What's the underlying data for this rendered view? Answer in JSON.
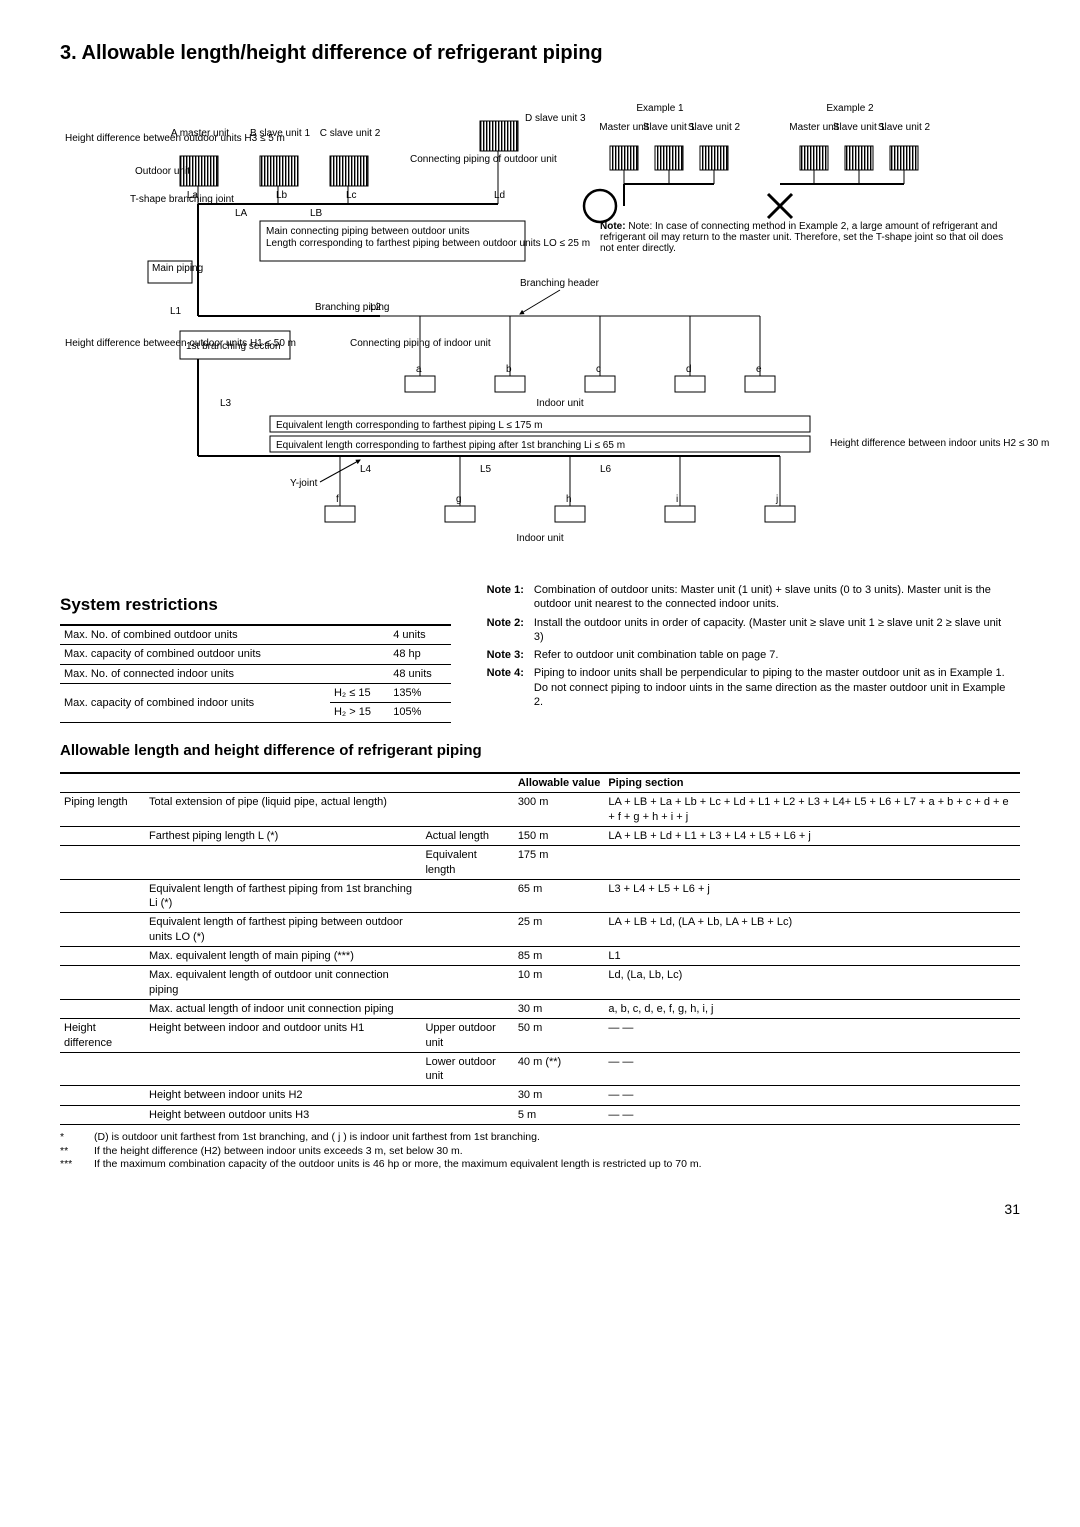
{
  "page_title": "3.  Allowable length/height difference of refrigerant piping",
  "diagram": {
    "labels": {
      "h_diff_outdoor": "Height difference between outdoor units H3 ≤ 5 m",
      "a_master": "A master unit",
      "b_slave": "B slave unit 1",
      "c_slave": "C slave unit 2",
      "d_slave": "D slave unit 3",
      "outdoor_unit": "Outdoor unit",
      "t_joint": "T-shape branching joint",
      "la": "La",
      "lb": "Lb",
      "lc": "Lc",
      "ld": "Ld",
      "LA": "LA",
      "LB": "LB",
      "connecting_piping": "Connecting piping of outdoor unit",
      "main_connecting": "Main connecting piping between outdoor units",
      "length_lo": "Length corresponding to farthest piping between outdoor units LO ≤ 25 m",
      "main_piping": "Main piping",
      "l1": "L1",
      "l2": "L2",
      "l3": "L3",
      "l4": "L4",
      "l5": "L5",
      "l6": "L6",
      "branching_piping": "Branching piping",
      "first_branch": "1st branching section",
      "h_diff_out_in": "Height difference betweeen outdoor units H1 ≤ 50 m",
      "connecting_indoor": "Connecting piping of indoor unit",
      "branching_header": "Branching header",
      "a_j": [
        "a",
        "b",
        "c",
        "d",
        "e",
        "f",
        "g",
        "h",
        "i",
        "j"
      ],
      "indoor_unit": "Indoor unit",
      "eq_len_L": "Equivalent length corresponding to farthest piping L ≤ 175 m",
      "eq_len_Li": "Equivalent length corresponding to farthest piping after 1st branching Li ≤ 65 m",
      "y_joint": "Y-joint",
      "h_diff_indoor": "Height difference between indoor units H2 ≤ 30 m",
      "example1": "Example 1",
      "example2": "Example 2",
      "master_unit": "Master unit",
      "slave1": "Slave unit 1",
      "slave2": "Slave unit 2",
      "note_ex2": "Note: In case of connecting method in Example 2, a large amount of refrigerant and refrigerant oil may return to the master unit. Therefore, set the T-shape joint so that oil does not enter directly."
    }
  },
  "system_restrictions": {
    "title": "System restrictions",
    "rows": [
      [
        "Max. No. of combined outdoor units",
        "",
        "4 units"
      ],
      [
        "Max. capacity of combined outdoor units",
        "",
        "48 hp"
      ],
      [
        "Max. No. of connected indoor units",
        "",
        "48 units"
      ],
      [
        "Max. capacity of combined indoor units",
        "H₂ ≤ 15",
        "135%"
      ],
      [
        "",
        "H₂ > 15",
        "105%"
      ]
    ]
  },
  "notes": [
    [
      "Note 1:",
      "Combination of outdoor units: Master unit (1 unit) + slave units (0 to 3 units). Master unit is the outdoor unit nearest to the connected indoor units."
    ],
    [
      "Note 2:",
      "Install the outdoor units in order of capacity. (Master unit ≥ slave unit 1 ≥ slave unit 2 ≥ slave unit 3)"
    ],
    [
      "Note 3:",
      "Refer to outdoor unit combination table on page 7."
    ],
    [
      "Note 4:",
      "Piping to indoor units shall be perpendicular to piping to the master outdoor unit as in Example 1. Do not connect piping to indoor uints in the same direction as the master outdoor unit in Example 2."
    ]
  ],
  "allowable": {
    "title": "Allowable length and height difference of refrigerant piping",
    "headers": [
      "",
      "",
      "",
      "Allowable value",
      "Piping section"
    ],
    "rows": [
      [
        "Piping length",
        "Total extension of pipe (liquid pipe, actual length)",
        "",
        "300 m",
        "LA + LB + La + Lb + Lc + Ld + L1 + L2 + L3 + L4+ L5 + L6 + L7 + a + b + c + d + e + f + g + h + i + j"
      ],
      [
        "",
        "Farthest piping length L (*)",
        "Actual length",
        "150 m",
        "LA + LB + Ld + L1 + L3 + L4 + L5 + L6 + j"
      ],
      [
        "",
        "",
        "Equivalent length",
        "175 m",
        ""
      ],
      [
        "",
        "Equivalent length of farthest piping from 1st branching Li (*)",
        "",
        "65 m",
        "L3 + L4 + L5 + L6 + j"
      ],
      [
        "",
        "Equivalent length of farthest piping between outdoor units LO (*)",
        "",
        "25 m",
        "LA + LB + Ld,  (LA + Lb,  LA + LB + Lc)"
      ],
      [
        "",
        "Max. equivalent length of main piping (***)",
        "",
        "85 m",
        "L1"
      ],
      [
        "",
        "Max. equivalent length of outdoor unit connection piping",
        "",
        "10 m",
        "Ld,  (La, Lb, Lc)"
      ],
      [
        "",
        "Max. actual length of indoor unit connection piping",
        "",
        "30 m",
        "a, b, c, d, e, f, g, h, i, j"
      ],
      [
        "Height difference",
        "Height between indoor and outdoor units H1",
        "Upper outdoor unit",
        "50 m",
        "— —"
      ],
      [
        "",
        "",
        "Lower outdoor unit",
        "40 m (**)",
        "— —"
      ],
      [
        "",
        "Height between indoor units H2",
        "",
        "30 m",
        "— —"
      ],
      [
        "",
        "Height between outdoor units H3",
        "",
        "5 m",
        "— —"
      ]
    ]
  },
  "footnotes": [
    [
      "*",
      "(D) is outdoor unit farthest from 1st branching, and ( j ) is indoor unit farthest from 1st branching."
    ],
    [
      "**",
      "If the height difference (H2) between indoor units exceeds 3 m, set below 30 m."
    ],
    [
      "***",
      "If the maximum combination capacity of the outdoor units is 46 hp or more, the maximum equivalent length is restricted up to 70 m."
    ]
  ],
  "page_number": "31"
}
